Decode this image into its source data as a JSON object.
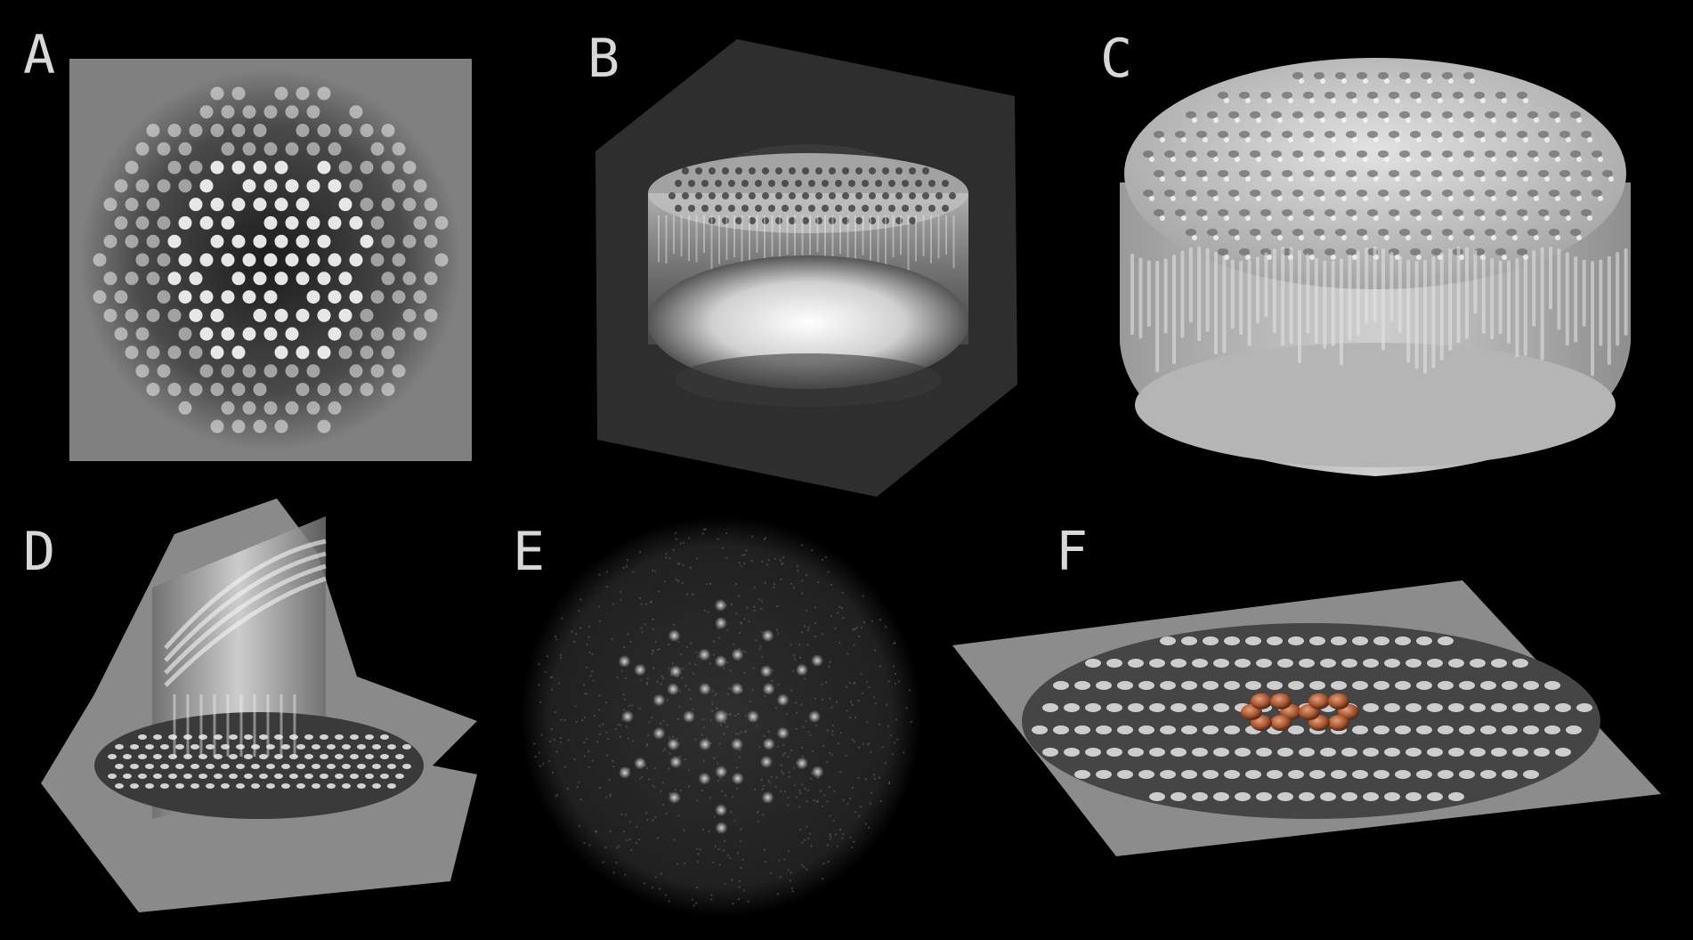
{
  "figure": {
    "background": "#000000",
    "panels": [
      {
        "label": "A",
        "description_icon": "density-slice-top-view",
        "colors": {
          "plane": "#808080",
          "blob": "#f2f2f2",
          "dark": "#1a1a1a"
        }
      },
      {
        "label": "B",
        "description_icon": "volume-render-box",
        "colors": {
          "box": "#2e2e2e",
          "glow": "#ffffff"
        }
      },
      {
        "label": "C",
        "description_icon": "isosurface-render",
        "colors": {
          "surface": "#c8c8c8"
        }
      },
      {
        "label": "D",
        "description_icon": "orthogonal-slices",
        "colors": {
          "plane": "#8a8a8a"
        }
      },
      {
        "label": "E",
        "description_icon": "diffraction-pattern",
        "colors": {
          "spot": "#bdbdbd",
          "noise": "#333333"
        }
      },
      {
        "label": "F",
        "description_icon": "tilted-slice-with-atoms",
        "colors": {
          "plane": "#8c8c8c",
          "atom": "#b8603a"
        }
      }
    ]
  }
}
